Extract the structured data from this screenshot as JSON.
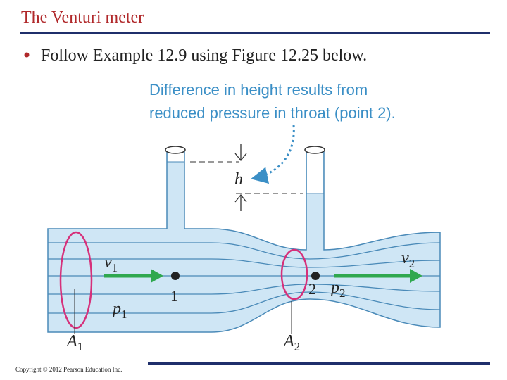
{
  "header": {
    "title": "The Venturi meter"
  },
  "bullets": [
    "Follow Example 12.9 using Figure 12.25 below."
  ],
  "figure": {
    "callout": [
      "Difference in height results from",
      "reduced pressure in throat (point 2)."
    ],
    "labels": {
      "h": "h",
      "v1": {
        "symbol": "v",
        "subscript": "1"
      },
      "point1": "1",
      "p1": {
        "symbol": "p",
        "subscript": "1"
      },
      "A1": {
        "symbol": "A",
        "subscript": "1"
      },
      "A2": {
        "symbol": "A",
        "subscript": "2"
      },
      "point2": "2",
      "p2": {
        "symbol": "p",
        "subscript": "2"
      },
      "v2": {
        "symbol": "v",
        "subscript": "2"
      }
    }
  },
  "footer": {
    "copyright": "Copyright © 2012 Pearson Education Inc."
  }
}
